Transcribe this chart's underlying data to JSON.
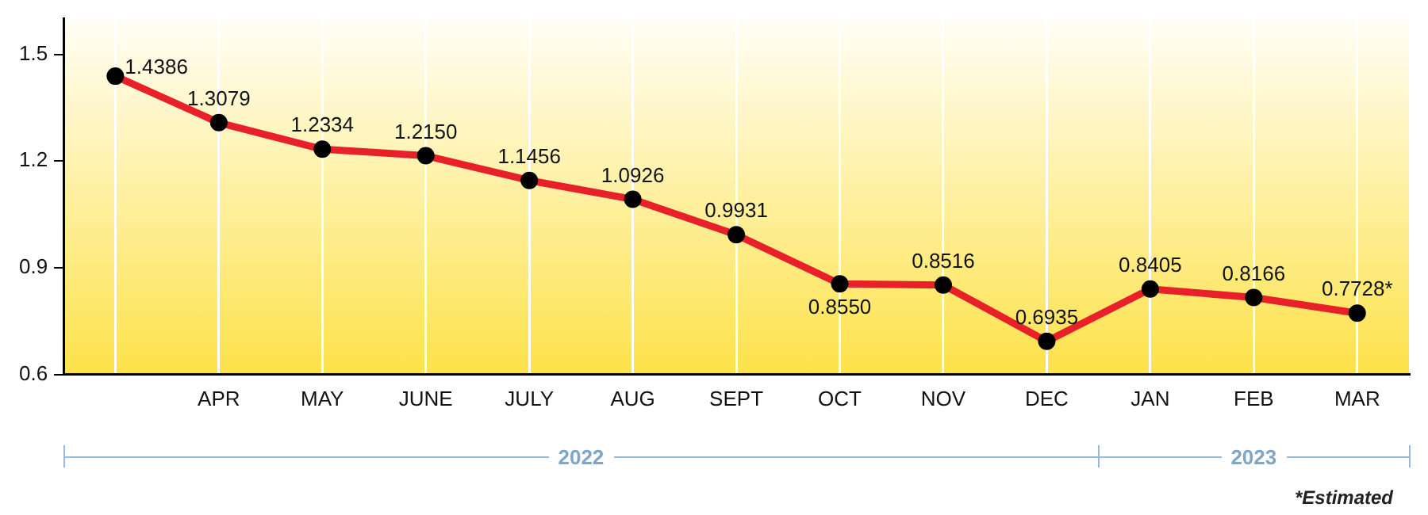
{
  "chart_data": {
    "type": "line",
    "categories": [
      null,
      "APR",
      "MAY",
      "JUNE",
      "JULY",
      "AUG",
      "SEPT",
      "OCT",
      "NOV",
      "DEC",
      "JAN",
      "FEB",
      "MAR"
    ],
    "series": [
      {
        "color": "#e8202a",
        "values": [
          1.4386,
          1.3079,
          1.2334,
          1.215,
          1.1456,
          1.0926,
          0.9931,
          0.855,
          0.8516,
          0.6935,
          0.8405,
          0.8166,
          0.7728
        ],
        "value_labels": [
          "1.4386",
          "1.3079",
          "1.2334",
          "1.2150",
          "1.1456",
          "1.0926",
          "0.9931",
          "0.8550",
          "0.8516",
          "0.6935",
          "0.8405",
          "0.8166",
          "0.7728*"
        ]
      }
    ],
    "ylim": [
      0.6,
      1.6
    ],
    "yticks": [
      0.6,
      0.9,
      1.2,
      1.5
    ],
    "grid": "x",
    "marker": "circle",
    "line_style": "solid",
    "legend": false,
    "annotations": [
      "2022",
      "2023",
      "*Estimated"
    ]
  }
}
